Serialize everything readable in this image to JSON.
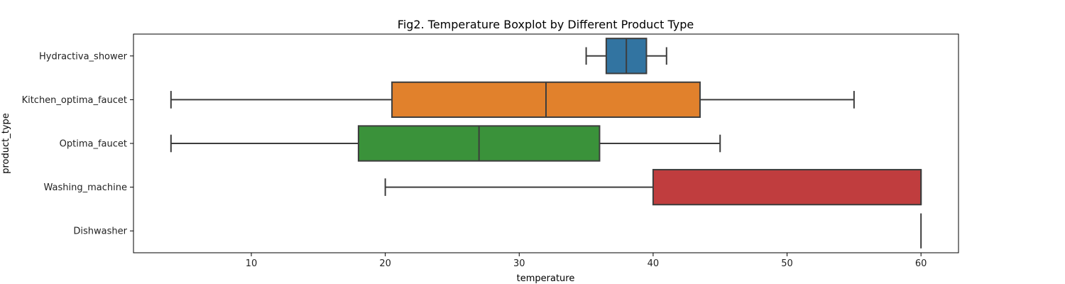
{
  "chart_data": {
    "type": "boxplot",
    "orientation": "horizontal",
    "title": "Fig2. Temperature Boxplot by Different Product Type",
    "xlabel": "temperature",
    "ylabel": "product_type",
    "xlim": [
      1.2,
      62.8
    ],
    "xticks": [
      10,
      20,
      30,
      40,
      50,
      60
    ],
    "grid": false,
    "series": [
      {
        "name": "Hydractiva_shower",
        "whisker_low": 35,
        "q1": 36.5,
        "median": 38,
        "q3": 39.5,
        "whisker_high": 41,
        "color": "#3274a1"
      },
      {
        "name": "Kitchen_optima_faucet",
        "whisker_low": 4,
        "q1": 20.5,
        "median": 32,
        "q3": 43.5,
        "whisker_high": 55,
        "color": "#e1812c"
      },
      {
        "name": "Optima_faucet",
        "whisker_low": 4,
        "q1": 18,
        "median": 27,
        "q3": 36,
        "whisker_high": 45,
        "color": "#3a923a"
      },
      {
        "name": "Washing_machine",
        "whisker_low": 20,
        "q1": 40,
        "median": 60,
        "q3": 60,
        "whisker_high": 60,
        "color": "#c03d3e"
      },
      {
        "name": "Dishwasher",
        "whisker_low": 60,
        "q1": 60,
        "median": 60,
        "q3": 60,
        "whisker_high": 60,
        "color": "#9372b2"
      }
    ]
  }
}
